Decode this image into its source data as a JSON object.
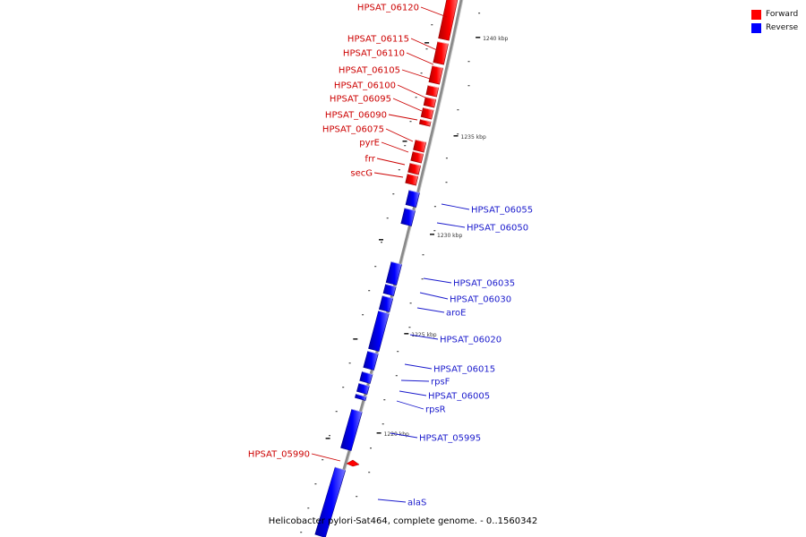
{
  "caption": "Helicobacter pylori Sat464, complete genome. - 0..1560342",
  "legend": [
    {
      "label": "Forward",
      "color": "#ff0000"
    },
    {
      "label": "Reverse",
      "color": "#0000ff"
    }
  ],
  "colors": {
    "forward": "#ff0000",
    "reverse": "#0000ff",
    "forward_label": "#cc0000",
    "reverse_label": "#1a1acc",
    "backbone": "#8a8a8a"
  },
  "kbp_labels": [
    "1240 kbp",
    "1235 kbp",
    "1230 kbp",
    "1225 kbp",
    "1220 kbp"
  ],
  "genes_forward": [
    {
      "name": "HPSAT_06120"
    },
    {
      "name": "HPSAT_06115"
    },
    {
      "name": "HPSAT_06110"
    },
    {
      "name": "HPSAT_06105"
    },
    {
      "name": "HPSAT_06100"
    },
    {
      "name": "HPSAT_06095"
    },
    {
      "name": "HPSAT_06090"
    },
    {
      "name": "HPSAT_06075"
    },
    {
      "name": "pyrE"
    },
    {
      "name": "frr"
    },
    {
      "name": "secG"
    },
    {
      "name": "HPSAT_05990"
    }
  ],
  "genes_reverse": [
    {
      "name": "HPSAT_06055"
    },
    {
      "name": "HPSAT_06050"
    },
    {
      "name": "HPSAT_06035"
    },
    {
      "name": "HPSAT_06030"
    },
    {
      "name": "aroE"
    },
    {
      "name": "HPSAT_06020"
    },
    {
      "name": "HPSAT_06015"
    },
    {
      "name": "rpsF"
    },
    {
      "name": "HPSAT_06005"
    },
    {
      "name": "rpsR"
    },
    {
      "name": "HPSAT_05995"
    },
    {
      "name": "alaS"
    }
  ]
}
